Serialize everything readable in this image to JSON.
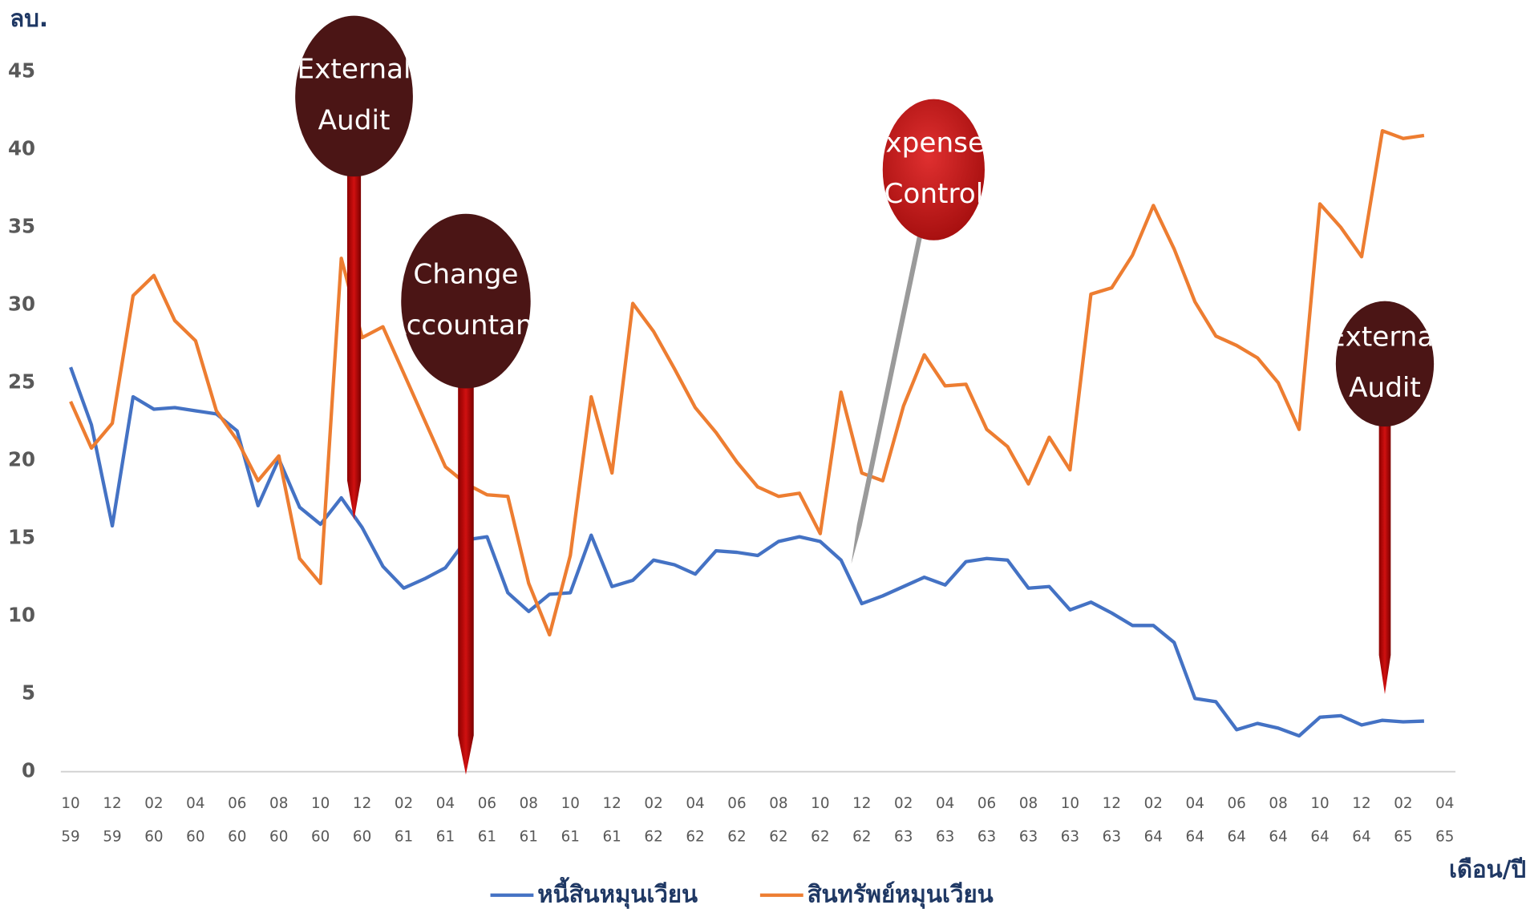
{
  "chart_data": {
    "type": "line",
    "y_label": "ลบ.",
    "x_label": "เดือน/ปี",
    "categories": [
      "10 59",
      null,
      "12 59",
      null,
      "02 60",
      null,
      "04 60",
      null,
      "06 60",
      null,
      "08 60",
      null,
      "10 60",
      null,
      "12 60",
      null,
      "02 61",
      null,
      "04 61",
      null,
      "06 61",
      null,
      "08 61",
      null,
      "10 61",
      null,
      "12 61",
      null,
      "02 62",
      null,
      "04 62",
      null,
      "06 62",
      null,
      "08 62",
      null,
      "10 62",
      null,
      "12 62",
      null,
      "02 63",
      null,
      "04 63",
      null,
      "06 63",
      null,
      "08 63",
      null,
      "10 63",
      null,
      "12 63",
      null,
      "02 64",
      null,
      "04 64",
      null,
      "06 64",
      null,
      "08 64",
      null,
      "10 64",
      null,
      "12 64",
      null,
      "02 65",
      null,
      "04 65"
    ],
    "series": [
      {
        "name": "หนี้สินหมุนเวียน",
        "color": "#4472c4",
        "values": [
          26,
          22.3,
          15.8,
          24.1,
          23.3,
          23.4,
          23.2,
          23,
          21.9,
          17.1,
          20.1,
          17,
          15.9,
          17.6,
          15.7,
          13.2,
          11.8,
          12.4,
          13.1,
          14.9,
          15.1,
          11.5,
          10.3,
          11.4,
          11.5,
          15.2,
          11.9,
          12.3,
          13.6,
          13.3,
          12.7,
          14.2,
          14.1,
          13.9,
          14.8,
          15.1,
          14.8,
          13.6,
          10.8,
          11.3,
          11.9,
          12.5,
          12,
          13.5,
          13.7,
          13.6,
          11.8,
          11.9,
          10.4,
          10.9,
          10.2,
          9.4,
          9.4,
          8.3,
          4.7,
          4.5,
          2.7,
          3.1,
          2.8,
          2.3,
          3.5,
          3.6,
          3,
          3.3,
          3.2,
          3.25,
          null
        ]
      },
      {
        "name": "สินทรัพย์หมุนเวียน",
        "color": "#ed7d31",
        "values": [
          23.8,
          20.8,
          22.4,
          30.6,
          31.9,
          29,
          27.7,
          23.2,
          21.3,
          18.7,
          20.3,
          13.7,
          12.1,
          33,
          27.9,
          28.6,
          25.6,
          22.6,
          19.6,
          18.5,
          17.8,
          17.7,
          12.1,
          8.8,
          13.9,
          24.1,
          19.2,
          30.1,
          28.3,
          25.9,
          23.4,
          21.8,
          19.9,
          18.3,
          17.7,
          17.9,
          15.3,
          24.4,
          19.2,
          18.7,
          23.5,
          26.8,
          24.8,
          24.9,
          22,
          20.9,
          18.5,
          21.5,
          19.4,
          30.7,
          31.1,
          33.2,
          36.4,
          33.6,
          30.2,
          28,
          27.4,
          26.6,
          25,
          22,
          36.5,
          35,
          33.1,
          41.2,
          40.7,
          40.9,
          null
        ]
      }
    ],
    "ylim": [
      0,
      45
    ],
    "yticks": [
      0,
      5,
      10,
      15,
      20,
      25,
      30,
      35,
      40,
      45
    ],
    "annotations": [
      {
        "lines": [
          "External",
          "Audit"
        ]
      },
      {
        "lines": [
          "Change",
          "Accountant"
        ]
      },
      {
        "lines": [
          "Expenses",
          "Control"
        ]
      },
      {
        "lines": [
          "External",
          "Audit"
        ]
      }
    ]
  }
}
